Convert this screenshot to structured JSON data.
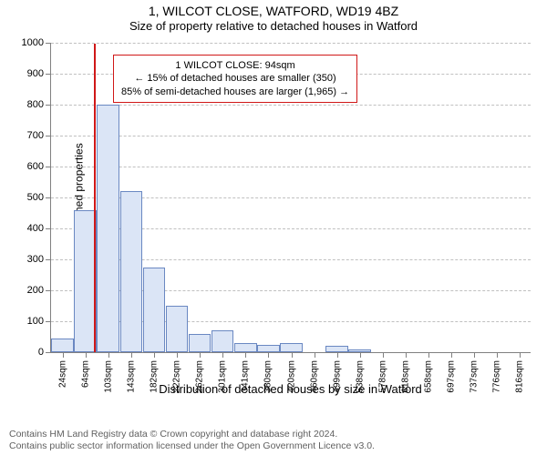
{
  "titles": {
    "main": "1, WILCOT CLOSE, WATFORD, WD19 4BZ",
    "sub": "Size of property relative to detached houses in Watford"
  },
  "chart": {
    "type": "histogram",
    "y_axis_label": "Number of detached properties",
    "x_axis_label": "Distribution of detached houses by size in Watford",
    "ylim": [
      0,
      1000
    ],
    "ytick_step": 100,
    "x_categories": [
      "24sqm",
      "64sqm",
      "103sqm",
      "143sqm",
      "182sqm",
      "222sqm",
      "262sqm",
      "301sqm",
      "341sqm",
      "380sqm",
      "420sqm",
      "460sqm",
      "499sqm",
      "538sqm",
      "578sqm",
      "618sqm",
      "658sqm",
      "697sqm",
      "737sqm",
      "776sqm",
      "816sqm"
    ],
    "values": [
      45,
      460,
      800,
      520,
      275,
      150,
      60,
      70,
      30,
      25,
      30,
      0,
      20,
      10,
      0,
      0,
      0,
      0,
      0,
      0,
      0
    ],
    "bar_fill": "#dbe5f6",
    "bar_border": "#6a88c2",
    "grid_color": "#c0c0c0",
    "axis_color": "#808080",
    "background_color": "#ffffff",
    "title_fontsize": 14,
    "subtitle_fontsize": 13,
    "label_fontsize": 12,
    "tick_fontsize": 11,
    "xtick_fontsize": 10
  },
  "marker": {
    "color": "#d01818",
    "x_sqm": 94,
    "x_range": [
      24,
      816
    ]
  },
  "annotation": {
    "line1": "1 WILCOT CLOSE: 94sqm",
    "line2": "← 15% of detached houses are smaller (350)",
    "line3": "85% of semi-detached houses are larger (1,965) →",
    "border_color": "#d01818"
  },
  "footer": {
    "line1": "Contains HM Land Registry data © Crown copyright and database right 2024.",
    "line2": "Contains public sector information licensed under the Open Government Licence v3.0."
  }
}
